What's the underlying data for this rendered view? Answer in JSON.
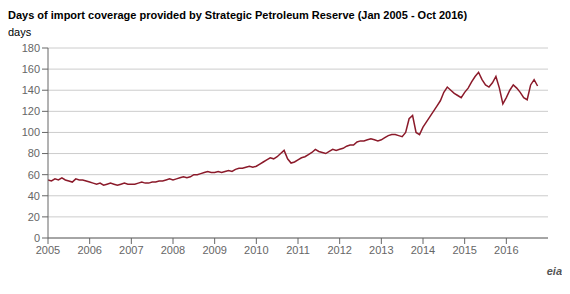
{
  "chart_data": {
    "type": "line",
    "title": "Days of import coverage provided by Strategic Petroleum Reserve (Jan 2005 - Oct 2016)",
    "ylabel": "days",
    "annotations": [
      "eia"
    ],
    "color": "#8B1A2A",
    "grid": true,
    "xlim": [
      2005,
      2017.0
    ],
    "xticks": [
      2005,
      2006,
      2007,
      2008,
      2009,
      2010,
      2011,
      2012,
      2013,
      2014,
      2015,
      2016
    ],
    "ylim": [
      0,
      180
    ],
    "yticks": [
      0,
      20,
      40,
      60,
      80,
      100,
      120,
      140,
      160,
      180
    ],
    "x": [
      2005,
      2005.083333,
      2005.166667,
      2005.25,
      2005.333333,
      2005.416667,
      2005.5,
      2005.583333,
      2005.666667,
      2005.75,
      2005.833333,
      2005.916667,
      2006,
      2006.083333,
      2006.166667,
      2006.25,
      2006.333333,
      2006.416667,
      2006.5,
      2006.583333,
      2006.666667,
      2006.75,
      2006.833333,
      2006.916667,
      2007,
      2007.083333,
      2007.166667,
      2007.25,
      2007.333333,
      2007.416667,
      2007.5,
      2007.583333,
      2007.666667,
      2007.75,
      2007.833333,
      2007.916667,
      2008,
      2008.083333,
      2008.166667,
      2008.25,
      2008.333333,
      2008.416667,
      2008.5,
      2008.583333,
      2008.666667,
      2008.75,
      2008.833333,
      2008.916667,
      2009,
      2009.083333,
      2009.166667,
      2009.25,
      2009.333333,
      2009.416667,
      2009.5,
      2009.583333,
      2009.666667,
      2009.75,
      2009.833333,
      2009.916667,
      2010,
      2010.083333,
      2010.166667,
      2010.25,
      2010.333333,
      2010.416667,
      2010.5,
      2010.583333,
      2010.666667,
      2010.75,
      2010.833333,
      2010.916667,
      2011,
      2011.083333,
      2011.166667,
      2011.25,
      2011.333333,
      2011.416667,
      2011.5,
      2011.583333,
      2011.666667,
      2011.75,
      2011.833333,
      2011.916667,
      2012,
      2012.083333,
      2012.166667,
      2012.25,
      2012.333333,
      2012.416667,
      2012.5,
      2012.583333,
      2012.666667,
      2012.75,
      2012.833333,
      2012.916667,
      2013,
      2013.083333,
      2013.166667,
      2013.25,
      2013.333333,
      2013.416667,
      2013.5,
      2013.583333,
      2013.666667,
      2013.75,
      2013.833333,
      2013.916667,
      2014,
      2014.083333,
      2014.166667,
      2014.25,
      2014.333333,
      2014.416667,
      2014.5,
      2014.583333,
      2014.666667,
      2014.75,
      2014.833333,
      2014.916667,
      2015,
      2015.083333,
      2015.166667,
      2015.25,
      2015.333333,
      2015.416667,
      2015.5,
      2015.583333,
      2015.666667,
      2015.75,
      2015.833333,
      2015.916667,
      2016,
      2016.083333,
      2016.166667,
      2016.25,
      2016.333333,
      2016.416667,
      2016.5,
      2016.583333,
      2016.666667,
      2016.75
    ],
    "values": [
      55,
      54,
      56,
      55,
      57,
      55,
      54,
      53,
      56,
      55,
      55,
      54,
      53,
      52,
      51,
      52,
      50,
      51,
      52,
      51,
      50,
      51,
      52,
      51,
      51,
      51,
      52,
      53,
      52,
      52,
      53,
      53,
      54,
      54,
      55,
      56,
      55,
      56,
      57,
      58,
      57,
      58,
      60,
      60,
      61,
      62,
      63,
      62,
      62,
      63,
      62,
      63,
      64,
      63,
      65,
      66,
      66,
      67,
      68,
      67,
      68,
      70,
      72,
      74,
      76,
      75,
      77,
      80,
      83,
      75,
      71,
      72,
      74,
      76,
      77,
      79,
      81,
      84,
      82,
      81,
      80,
      82,
      84,
      83,
      84,
      85,
      87,
      88,
      88,
      91,
      92,
      92,
      93,
      94,
      93,
      92,
      93,
      95,
      97,
      98,
      98,
      97,
      96,
      100,
      113,
      116,
      100,
      98,
      105,
      110,
      115,
      120,
      125,
      130,
      138,
      143,
      140,
      137,
      135,
      133,
      138,
      142,
      148,
      153,
      157,
      150,
      145,
      143,
      147,
      153,
      142,
      127,
      133,
      140,
      145,
      142,
      138,
      133,
      131,
      145,
      150,
      144
    ]
  }
}
